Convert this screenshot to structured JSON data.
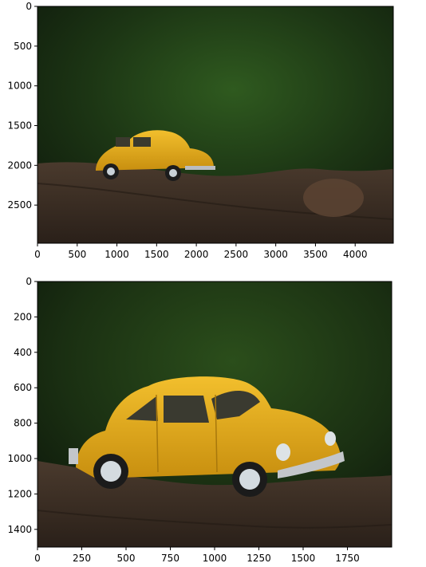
{
  "chart_data": [
    {
      "type": "image",
      "title": "",
      "image_description": "Yellow toy car (beetle) on a tree bark, blurred green background — full view",
      "image_extent": {
        "x": [
          0,
          4480
        ],
        "y": [
          2980,
          0
        ]
      },
      "x_ticks": [
        0,
        500,
        1000,
        1500,
        2000,
        2500,
        3000,
        3500,
        4000
      ],
      "y_ticks": [
        0,
        500,
        1000,
        1500,
        2000,
        2500
      ],
      "colors": {
        "bg_dark": "#0f1a0c",
        "bg_green": "#2f5a1f",
        "car_yellow": "#e7ac1b",
        "bark": "#3a2b20"
      }
    },
    {
      "type": "image",
      "title": "",
      "image_description": "Cropped zoom of the yellow toy car on the bark",
      "image_extent": {
        "x": [
          0,
          2000
        ],
        "y": [
          1500,
          0
        ]
      },
      "x_ticks": [
        0,
        250,
        500,
        750,
        1000,
        1250,
        1500,
        1750
      ],
      "y_ticks": [
        0,
        200,
        400,
        600,
        800,
        1000,
        1200,
        1400
      ],
      "colors": {
        "bg_dark": "#0f1a0c",
        "bg_green": "#2f5a1f",
        "car_yellow": "#e7ac1b",
        "bark": "#3a2b20"
      }
    }
  ]
}
